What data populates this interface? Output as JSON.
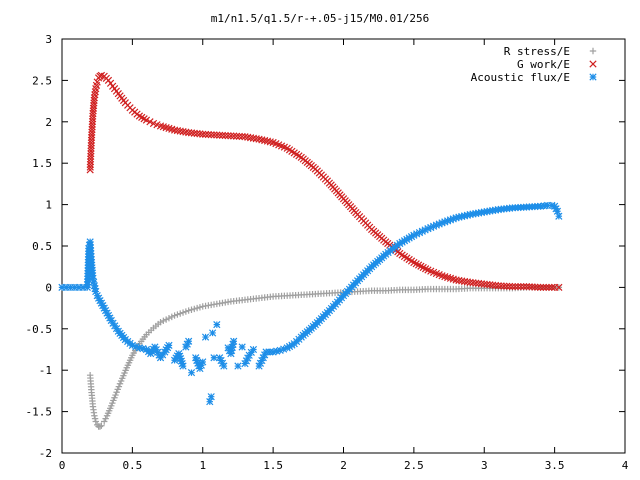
{
  "chart_data": {
    "type": "scatter",
    "title": "m1/n1.5/q1.5/r-+.05-j15/M0.01/256",
    "xlabel": "",
    "ylabel": "",
    "xlim": [
      0,
      4
    ],
    "ylim": [
      -2,
      3
    ],
    "xticks": [
      "0",
      "0.5",
      "1",
      "1.5",
      "2",
      "2.5",
      "3",
      "3.5",
      "4"
    ],
    "yticks": [
      "-2",
      "-1.5",
      "-1",
      "-0.5",
      "0",
      "0.5",
      "1",
      "1.5",
      "2",
      "2.5",
      "3"
    ],
    "grid": false,
    "legend_position": "top-right",
    "series": [
      {
        "name": "R stress/E",
        "marker": "plus",
        "color": "#a0a0a0",
        "x": [
          0.2,
          0.21,
          0.22,
          0.23,
          0.24,
          0.25,
          0.26,
          0.27,
          0.28,
          0.3,
          0.32,
          0.35,
          0.38,
          0.42,
          0.46,
          0.5,
          0.55,
          0.6,
          0.65,
          0.7,
          0.8,
          0.9,
          1.0,
          1.1,
          1.2,
          1.3,
          1.4,
          1.5,
          1.6,
          1.7,
          1.8,
          1.9,
          2.0,
          2.1,
          2.2,
          2.3,
          2.4,
          2.5,
          2.6,
          2.7,
          2.8,
          2.9,
          3.0,
          3.1,
          3.2,
          3.3,
          3.4,
          3.5,
          3.53
        ],
        "y": [
          -1.06,
          -1.27,
          -1.44,
          -1.55,
          -1.62,
          -1.66,
          -1.68,
          -1.68,
          -1.67,
          -1.62,
          -1.55,
          -1.43,
          -1.3,
          -1.13,
          -0.97,
          -0.82,
          -0.68,
          -0.57,
          -0.49,
          -0.42,
          -0.34,
          -0.28,
          -0.23,
          -0.2,
          -0.17,
          -0.15,
          -0.13,
          -0.11,
          -0.1,
          -0.09,
          -0.08,
          -0.07,
          -0.06,
          -0.05,
          -0.04,
          -0.04,
          -0.03,
          -0.03,
          -0.02,
          -0.02,
          -0.02,
          -0.01,
          -0.01,
          -0.01,
          -0.01,
          0.0,
          0.0,
          0.0,
          0.0
        ]
      },
      {
        "name": "G work/E",
        "marker": "cross",
        "color": "#d02020",
        "x": [
          0.2,
          0.21,
          0.22,
          0.23,
          0.24,
          0.25,
          0.26,
          0.27,
          0.28,
          0.3,
          0.33,
          0.36,
          0.4,
          0.45,
          0.5,
          0.55,
          0.6,
          0.65,
          0.7,
          0.8,
          0.9,
          1.0,
          1.1,
          1.2,
          1.3,
          1.4,
          1.5,
          1.6,
          1.7,
          1.8,
          1.9,
          2.0,
          2.1,
          2.2,
          2.3,
          2.4,
          2.5,
          2.6,
          2.7,
          2.8,
          2.9,
          3.0,
          3.1,
          3.2,
          3.3,
          3.4,
          3.5,
          3.53
        ],
        "y": [
          1.42,
          1.81,
          2.1,
          2.29,
          2.4,
          2.48,
          2.53,
          2.55,
          2.56,
          2.55,
          2.5,
          2.43,
          2.34,
          2.23,
          2.14,
          2.07,
          2.02,
          1.98,
          1.95,
          1.9,
          1.87,
          1.85,
          1.84,
          1.83,
          1.82,
          1.79,
          1.75,
          1.68,
          1.57,
          1.43,
          1.26,
          1.07,
          0.88,
          0.7,
          0.55,
          0.41,
          0.3,
          0.21,
          0.14,
          0.09,
          0.06,
          0.04,
          0.02,
          0.01,
          0.01,
          0.0,
          0.0,
          0.0
        ]
      },
      {
        "name": "Acoustic flux/E",
        "marker": "star",
        "color": "#1e8ee8",
        "x": [
          0.0,
          0.03,
          0.06,
          0.09,
          0.12,
          0.15,
          0.18,
          0.19,
          0.2,
          0.21,
          0.22,
          0.23,
          0.24,
          0.25,
          0.27,
          0.3,
          0.35,
          0.4,
          0.45,
          0.5,
          0.55,
          0.6,
          0.63,
          0.66,
          0.7,
          0.73,
          0.76,
          0.8,
          0.83,
          0.86,
          0.88,
          0.9,
          0.92,
          0.95,
          0.98,
          1.0,
          1.02,
          1.05,
          1.06,
          1.07,
          1.08,
          1.1,
          1.12,
          1.15,
          1.18,
          1.2,
          1.22,
          1.25,
          1.28,
          1.3,
          1.33,
          1.36,
          1.4,
          1.43,
          1.45,
          1.5,
          1.55,
          1.6,
          1.65,
          1.7,
          1.8,
          1.9,
          2.0,
          2.1,
          2.2,
          2.3,
          2.4,
          2.5,
          2.6,
          2.7,
          2.8,
          2.9,
          3.0,
          3.1,
          3.2,
          3.3,
          3.4,
          3.45,
          3.48,
          3.5,
          3.52,
          3.53
        ],
        "y": [
          0.0,
          0.0,
          0.0,
          0.0,
          0.0,
          0.0,
          0.0,
          0.47,
          0.55,
          0.3,
          0.11,
          0.02,
          -0.05,
          -0.1,
          -0.16,
          -0.25,
          -0.4,
          -0.53,
          -0.63,
          -0.7,
          -0.73,
          -0.75,
          -0.8,
          -0.72,
          -0.85,
          -0.78,
          -0.7,
          -0.88,
          -0.8,
          -0.95,
          -0.72,
          -0.65,
          -1.03,
          -0.85,
          -0.98,
          -0.9,
          -0.6,
          -1.38,
          -1.32,
          -0.55,
          -0.85,
          -0.45,
          -0.85,
          -0.95,
          -0.73,
          -0.8,
          -0.65,
          -0.95,
          -0.72,
          -0.92,
          -0.82,
          -0.75,
          -0.95,
          -0.85,
          -0.78,
          -0.78,
          -0.76,
          -0.73,
          -0.68,
          -0.6,
          -0.45,
          -0.28,
          -0.1,
          0.08,
          0.25,
          0.4,
          0.53,
          0.63,
          0.71,
          0.78,
          0.84,
          0.88,
          0.91,
          0.94,
          0.96,
          0.97,
          0.98,
          0.99,
          0.99,
          0.98,
          0.92,
          0.86
        ]
      }
    ]
  }
}
